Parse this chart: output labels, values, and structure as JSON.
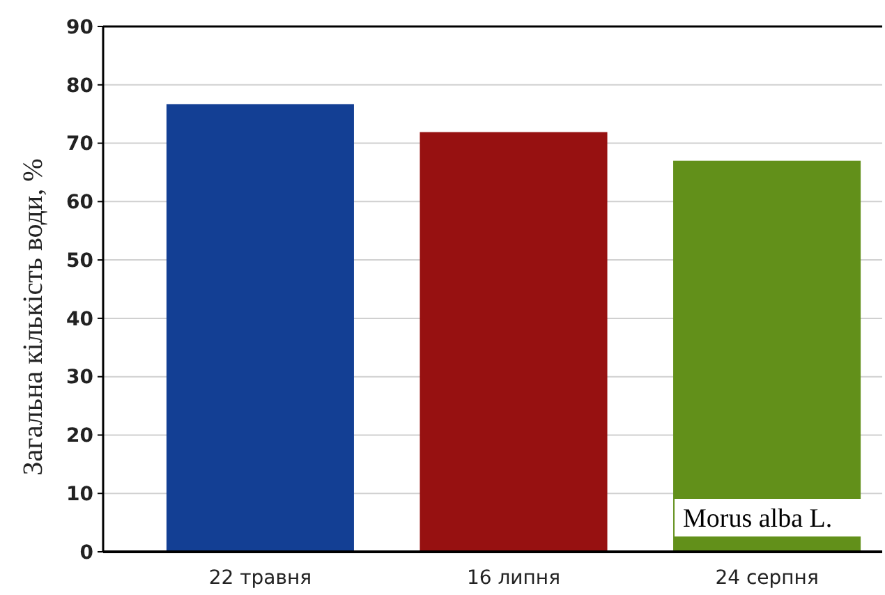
{
  "chart_data": {
    "type": "bar",
    "ylabel": "Загальна кількість води, %",
    "categories": [
      "22 травня",
      "16 липня",
      "24 серпня"
    ],
    "values": [
      76.7,
      71.9,
      67.0
    ],
    "colors": [
      "#133f94",
      "#971111",
      "#62901a"
    ],
    "ylim": [
      0,
      90
    ],
    "yticks": [
      0,
      10,
      20,
      30,
      40,
      50,
      60,
      70,
      80,
      90
    ],
    "grid": "y",
    "annotations": [
      "Morus alba L."
    ]
  }
}
